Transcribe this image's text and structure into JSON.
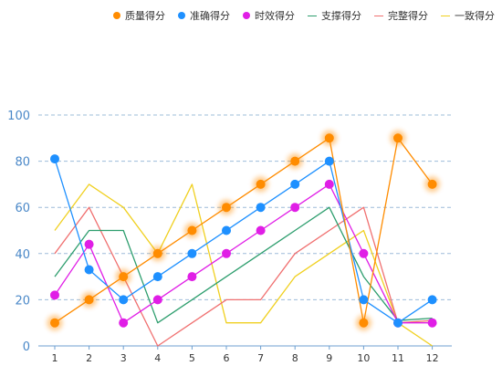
{
  "chart_data": {
    "type": "line",
    "title": "",
    "xlabel": "",
    "ylabel": "",
    "categories": [
      "1",
      "2",
      "3",
      "4",
      "5",
      "6",
      "7",
      "8",
      "9",
      "10",
      "11",
      "12"
    ],
    "ylim": [
      0,
      100
    ],
    "yticks": [
      0,
      20,
      40,
      60,
      80,
      100
    ],
    "grid": "horizontal dashed",
    "legend_position": "top-right",
    "series": [
      {
        "name": "质量得分",
        "color": "#ff8c00",
        "markers": true,
        "glow": true,
        "values": [
          10,
          20,
          30,
          40,
          50,
          60,
          70,
          80,
          90,
          10,
          90,
          70
        ]
      },
      {
        "name": "准确得分",
        "color": "#1e90ff",
        "markers": true,
        "glow": false,
        "values": [
          81,
          33,
          20,
          30,
          40,
          50,
          60,
          70,
          80,
          20,
          10,
          20
        ]
      },
      {
        "name": "时效得分",
        "color": "#e01ee6",
        "markers": true,
        "glow": false,
        "values": [
          22,
          44,
          10,
          20,
          30,
          40,
          50,
          60,
          70,
          40,
          10,
          10
        ]
      },
      {
        "name": "支撑得分",
        "color": "#2e9e6e",
        "markers": false,
        "glow": false,
        "values": [
          30,
          50,
          50,
          10,
          20,
          30,
          40,
          50,
          60,
          30,
          11,
          12
        ]
      },
      {
        "name": "完整得分",
        "color": "#f07070",
        "markers": false,
        "glow": false,
        "values": [
          40,
          60,
          30,
          0,
          10,
          20,
          20,
          40,
          50,
          60,
          10,
          11
        ]
      },
      {
        "name": "一致得分",
        "color": "#f0d020",
        "markers": false,
        "glow": false,
        "values": [
          50,
          70,
          60,
          40,
          70,
          10,
          10,
          30,
          40,
          50,
          10,
          0
        ]
      }
    ]
  }
}
